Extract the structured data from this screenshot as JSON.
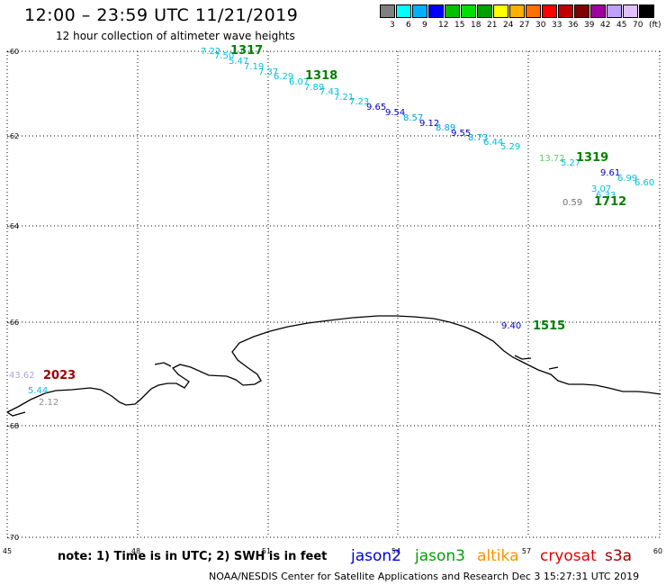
{
  "header": {
    "title": "12:00 – 23:59 UTC 11/21/2019",
    "subtitle": "12 hour collection of altimeter wave heights"
  },
  "legend": {
    "colors": [
      "#808080",
      "#00ffff",
      "#00b0ff",
      "#0000ff",
      "#00c000",
      "#00e000",
      "#00a000",
      "#ffff00",
      "#ffb000",
      "#ff7000",
      "#ff0000",
      "#c00000",
      "#800000",
      "#a000a0",
      "#c0a0ff",
      "#e0c0ff",
      "#000000"
    ],
    "labels": [
      "3",
      "6",
      "9",
      "12",
      "15",
      "18",
      "21",
      "24",
      "27",
      "30",
      "33",
      "36",
      "39",
      "42",
      "45",
      "70",
      "(ft)"
    ]
  },
  "map": {
    "lat_labels": [
      "-60",
      "-62",
      "-64",
      "-66",
      "-68",
      "-70"
    ],
    "lon_labels": [
      "45",
      "48",
      "51",
      "54",
      "57",
      "60"
    ],
    "observations": [
      {
        "v": "7.22",
        "c": "#00c0e0"
      },
      {
        "v": "7.50",
        "c": "#00c0e0"
      },
      {
        "v": "5.47",
        "c": "#00c0e0"
      },
      {
        "v": "7.19",
        "c": "#00c0e0"
      },
      {
        "v": "7.37",
        "c": "#00c0e0"
      },
      {
        "v": "6.29",
        "c": "#00c0e0"
      },
      {
        "v": "6.07",
        "c": "#00c0e0"
      },
      {
        "v": "7.89",
        "c": "#00c0e0"
      },
      {
        "v": "7.43",
        "c": "#00c0e0"
      },
      {
        "v": "7.21",
        "c": "#00c0e0"
      },
      {
        "v": "7.23",
        "c": "#00c0e0"
      },
      {
        "v": "9.65",
        "c": "#0000c0"
      },
      {
        "v": "9.54",
        "c": "#0000c0"
      },
      {
        "v": "8.57",
        "c": "#00a0e0"
      },
      {
        "v": "9.12",
        "c": "#0000c0"
      },
      {
        "v": "8.89",
        "c": "#00a0e0"
      },
      {
        "v": "9.55",
        "c": "#0000c0"
      },
      {
        "v": "8.73",
        "c": "#00a0e0"
      },
      {
        "v": "6.44",
        "c": "#00c0e0"
      },
      {
        "v": "5.29",
        "c": "#00c0e0"
      },
      {
        "v": "13.72",
        "c": "#60d060"
      },
      {
        "v": "5.27",
        "c": "#00c0e0"
      },
      {
        "v": "9.61",
        "c": "#0000c0"
      },
      {
        "v": "6.99",
        "c": "#00c0e0"
      },
      {
        "v": "6.60",
        "c": "#00c0e0"
      },
      {
        "v": "3.07",
        "c": "#00c0e0"
      },
      {
        "v": "6.33",
        "c": "#00c0e0"
      },
      {
        "v": "0.59",
        "c": "#707070"
      },
      {
        "v": "9.40",
        "c": "#0000c0"
      },
      {
        "v": "43.62",
        "c": "#b0a0e0"
      },
      {
        "v": "5.44",
        "c": "#00c0e0"
      },
      {
        "v": "2.12",
        "c": "#909090"
      }
    ],
    "track_ids": [
      {
        "id": "1317",
        "c": "#008000"
      },
      {
        "id": "1318",
        "c": "#008000"
      },
      {
        "id": "1319",
        "c": "#008000"
      },
      {
        "id": "1712",
        "c": "#008000"
      },
      {
        "id": "1515",
        "c": "#008000"
      },
      {
        "id": "2023",
        "c": "#a00000"
      }
    ]
  },
  "note": "note: 1) Time is in UTC; 2) SWH is in feet",
  "satellites": [
    {
      "name": "jason2",
      "color": "#0000e0"
    },
    {
      "name": "jason3",
      "color": "#00a000"
    },
    {
      "name": "altika",
      "color": "#ff9000"
    },
    {
      "name": "cryosat",
      "color": "#e00000"
    },
    {
      "name": "s3a",
      "color": "#a00000"
    }
  ],
  "footer": "NOAA/NESDIS Center for Satellite Applications and Research    Dec  3 15:27:31 UTC 2019"
}
